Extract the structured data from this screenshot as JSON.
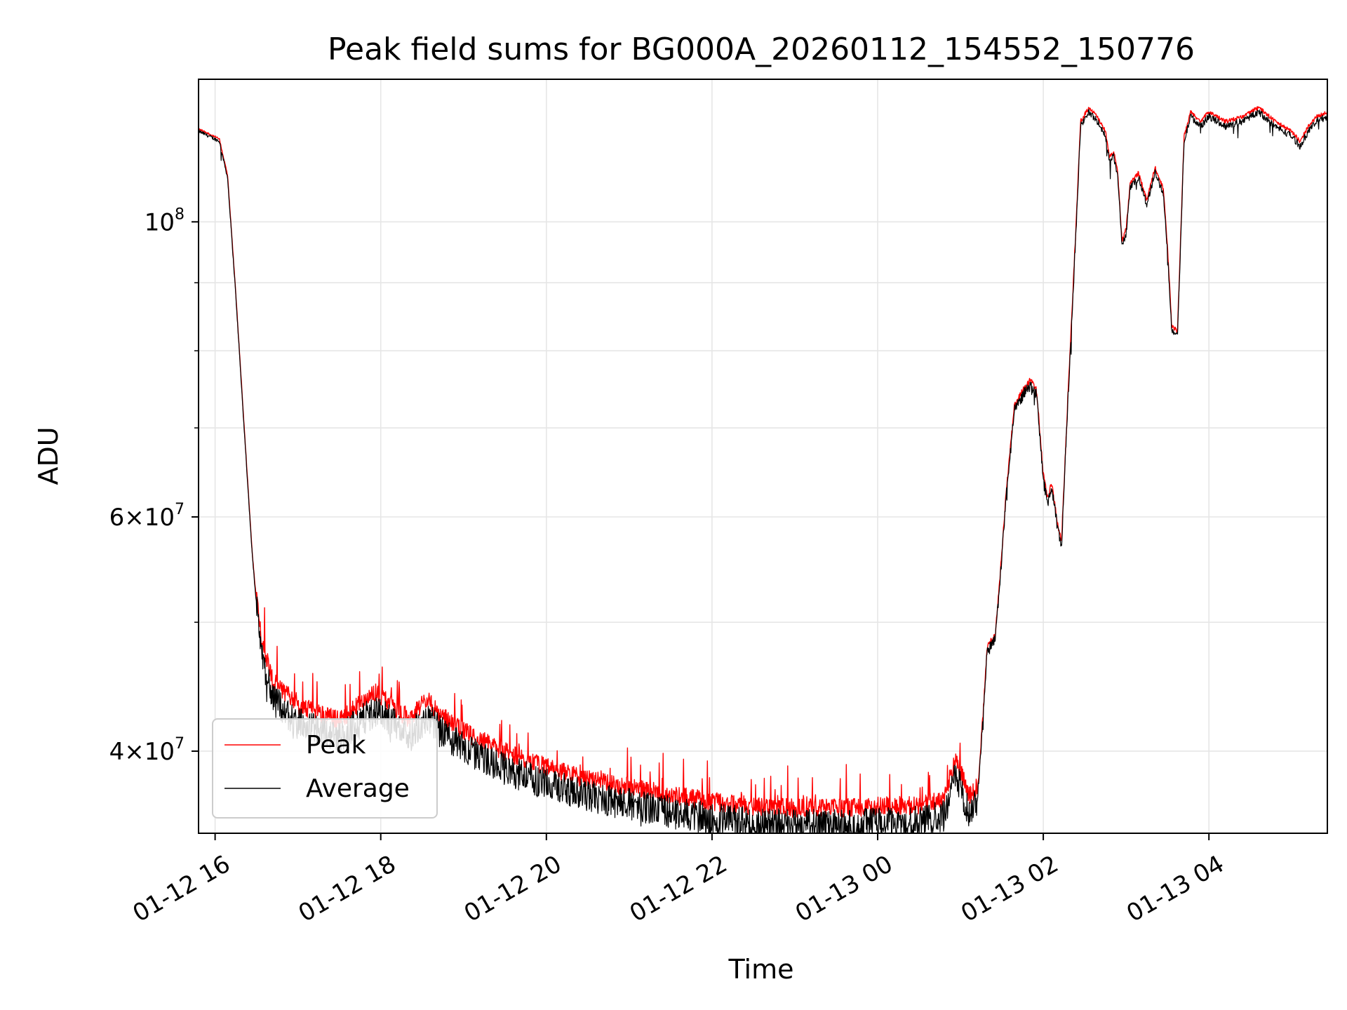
{
  "chart_data": {
    "type": "line",
    "title": "Peak field sums for BG000A_20260112_154552_150776",
    "xlabel": "Time",
    "ylabel": "ADU",
    "yscale": "log",
    "grid": true,
    "legend_location": "lower-left",
    "x_unit": "hours since 01-12 00:00",
    "xlim": [
      15.8,
      29.43
    ],
    "ylim": [
      34700000,
      128000000
    ],
    "x_ticks": [
      {
        "value": 16,
        "label": "01-12 16"
      },
      {
        "value": 18,
        "label": "01-12 18"
      },
      {
        "value": 20,
        "label": "01-12 20"
      },
      {
        "value": 22,
        "label": "01-12 22"
      },
      {
        "value": 24,
        "label": "01-13 00"
      },
      {
        "value": 26,
        "label": "01-13 02"
      },
      {
        "value": 28,
        "label": "01-13 04"
      }
    ],
    "y_major_ticks": [
      {
        "value": 40000000,
        "mantissa": "4",
        "base": "10",
        "exp": "7"
      },
      {
        "value": 60000000,
        "mantissa": "6",
        "base": "10",
        "exp": "7"
      },
      {
        "value": 100000000,
        "mantissa": "",
        "base": "10",
        "exp": "8"
      }
    ],
    "y_minor_ticks": [
      50000000,
      70000000,
      80000000,
      90000000
    ],
    "series": [
      {
        "name": "Peak",
        "color": "#ff0000"
      },
      {
        "name": "Average",
        "color": "#000000"
      }
    ],
    "average_trend": [
      [
        15.8,
        117000000
      ],
      [
        16.05,
        115000000
      ],
      [
        16.15,
        108000000
      ],
      [
        16.25,
        88000000
      ],
      [
        16.35,
        70000000
      ],
      [
        16.45,
        56000000
      ],
      [
        16.55,
        47500000
      ],
      [
        16.7,
        43800000
      ],
      [
        17.0,
        42000000
      ],
      [
        17.5,
        41000000
      ],
      [
        17.95,
        43000000
      ],
      [
        18.35,
        41000000
      ],
      [
        18.55,
        42500000
      ],
      [
        18.7,
        41500000
      ],
      [
        19.0,
        40200000
      ],
      [
        19.5,
        38800000
      ],
      [
        20.0,
        37800000
      ],
      [
        20.5,
        37000000
      ],
      [
        21.0,
        36500000
      ],
      [
        21.5,
        36000000
      ],
      [
        22.0,
        35600000
      ],
      [
        22.5,
        35300000
      ],
      [
        23.0,
        35200000
      ],
      [
        23.5,
        35200000
      ],
      [
        24.0,
        35300000
      ],
      [
        24.5,
        35400000
      ],
      [
        24.8,
        35800000
      ],
      [
        24.95,
        38500000
      ],
      [
        25.1,
        35900000
      ],
      [
        25.2,
        36500000
      ],
      [
        25.28,
        43000000
      ],
      [
        25.32,
        47500000
      ],
      [
        25.42,
        48500000
      ],
      [
        25.5,
        56000000
      ],
      [
        25.55,
        62000000
      ],
      [
        25.65,
        72000000
      ],
      [
        25.75,
        74000000
      ],
      [
        25.85,
        75500000
      ],
      [
        25.92,
        74000000
      ],
      [
        26.0,
        64000000
      ],
      [
        26.05,
        61500000
      ],
      [
        26.1,
        63000000
      ],
      [
        26.18,
        58500000
      ],
      [
        26.22,
        57000000
      ],
      [
        26.25,
        63000000
      ],
      [
        26.3,
        74000000
      ],
      [
        26.4,
        100000000
      ],
      [
        26.45,
        118000000
      ],
      [
        26.55,
        121000000
      ],
      [
        26.65,
        119000000
      ],
      [
        26.75,
        116000000
      ],
      [
        26.8,
        111000000
      ],
      [
        26.85,
        112000000
      ],
      [
        26.9,
        108000000
      ],
      [
        26.95,
        96000000
      ],
      [
        27.0,
        98000000
      ],
      [
        27.05,
        106000000
      ],
      [
        27.15,
        108000000
      ],
      [
        27.25,
        103000000
      ],
      [
        27.35,
        109000000
      ],
      [
        27.45,
        105000000
      ],
      [
        27.5,
        95000000
      ],
      [
        27.55,
        83000000
      ],
      [
        27.62,
        82000000
      ],
      [
        27.7,
        115000000
      ],
      [
        27.78,
        120000000
      ],
      [
        27.9,
        118000000
      ],
      [
        28.0,
        120000000
      ],
      [
        28.2,
        118000000
      ],
      [
        28.4,
        119000000
      ],
      [
        28.6,
        121000000
      ],
      [
        28.8,
        118000000
      ],
      [
        29.0,
        116000000
      ],
      [
        29.1,
        114000000
      ],
      [
        29.2,
        117000000
      ],
      [
        29.3,
        119000000
      ],
      [
        29.43,
        120000000
      ]
    ]
  }
}
